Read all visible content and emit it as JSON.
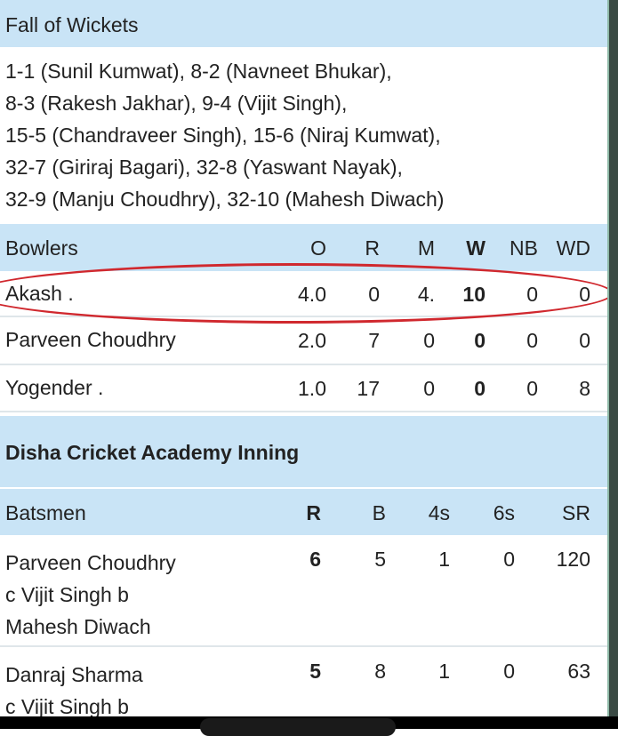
{
  "fall_of_wickets": {
    "title": "Fall of Wickets",
    "lines": [
      "1-1 (Sunil Kumwat),  8-2 (Navneet Bhukar),",
      "8-3 (Rakesh Jakhar),  9-4 (Vijit Singh),",
      "15-5 (Chandraveer Singh),  15-6 (Niraj Kumwat),",
      "32-7 (Giriraj Bagari),  32-8 (Yaswant Nayak),",
      "32-9 (Manju Choudhry),  32-10 (Mahesh Diwach)"
    ]
  },
  "bowlers": {
    "headers": [
      "Bowlers",
      "O",
      "R",
      "M",
      "W",
      "NB",
      "WD"
    ],
    "rows": [
      [
        "Akash .",
        "4.0",
        "0",
        "4.",
        "10",
        "0",
        "0"
      ],
      [
        "Parveen Choudhry",
        "2.0",
        "7",
        "0",
        "0",
        "0",
        "0"
      ],
      [
        "Yogender .",
        "1.0",
        "17",
        "0",
        "0",
        "0",
        "8"
      ]
    ]
  },
  "inning_title": "Disha Cricket Academy Inning",
  "batsmen": {
    "headers": [
      "Batsmen",
      "R",
      "B",
      "4s",
      "6s",
      "SR"
    ],
    "rows": [
      {
        "name": "Parveen Choudhry",
        "dismissal": [
          "c Vijit Singh b",
          "Mahesh Diwach"
        ],
        "stats": [
          "6",
          "5",
          "1",
          "0",
          "120"
        ]
      },
      {
        "name": "Danraj Sharma",
        "dismissal": [
          "c Vijit Singh b"
        ],
        "stats": [
          "5",
          "8",
          "1",
          "0",
          "63"
        ]
      }
    ]
  },
  "colors": {
    "header_bg": "#c9e4f6",
    "annotation": "#d0282e"
  }
}
